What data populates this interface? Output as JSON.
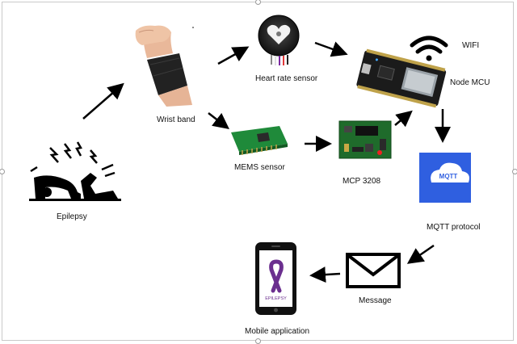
{
  "diagram": {
    "nodes": [
      {
        "id": "epilepsy",
        "label": "Epilepsy",
        "icon": "seizure-person-icon"
      },
      {
        "id": "wrist_band",
        "label": "Wrist band",
        "icon": "wrist-band-photo"
      },
      {
        "id": "heart_rate_sensor",
        "label": "Heart rate sensor",
        "icon": "pulse-sensor-photo"
      },
      {
        "id": "wifi",
        "label": "WIFI",
        "icon": "wifi-icon"
      },
      {
        "id": "node_mcu",
        "label": "Node MCU",
        "icon": "nodemcu-board-photo"
      },
      {
        "id": "mems_sensor",
        "label": "MEMS sensor",
        "icon": "mems-board-photo"
      },
      {
        "id": "mcp3208",
        "label": "MCP 3208",
        "icon": "adc-board-photo"
      },
      {
        "id": "mqtt",
        "label": "MQTT protocol",
        "icon": "mqtt-cloud-icon"
      },
      {
        "id": "message",
        "label": "Message",
        "icon": "envelope-icon"
      },
      {
        "id": "mobile_app",
        "label": "Mobile application",
        "icon": "smartphone-icon"
      }
    ],
    "edges": [
      {
        "from": "epilepsy",
        "to": "wrist_band"
      },
      {
        "from": "wrist_band",
        "to": "heart_rate_sensor"
      },
      {
        "from": "wrist_band",
        "to": "mems_sensor"
      },
      {
        "from": "heart_rate_sensor",
        "to": "node_mcu"
      },
      {
        "from": "mems_sensor",
        "to": "mcp3208"
      },
      {
        "from": "mcp3208",
        "to": "node_mcu"
      },
      {
        "from": "node_mcu",
        "to": "mqtt"
      },
      {
        "from": "mqtt",
        "to": "message"
      },
      {
        "from": "message",
        "to": "mobile_app"
      }
    ],
    "mqtt_badge_text": "MQTT",
    "phone_screen_text": "EPILEPSY"
  },
  "colors": {
    "arrow": "#000000",
    "mqtt_tile": "#2f5fe0",
    "ribbon": "#6b2f8f",
    "pcb_green": "#1f6b2b",
    "board_dark": "#1b1b1b"
  }
}
